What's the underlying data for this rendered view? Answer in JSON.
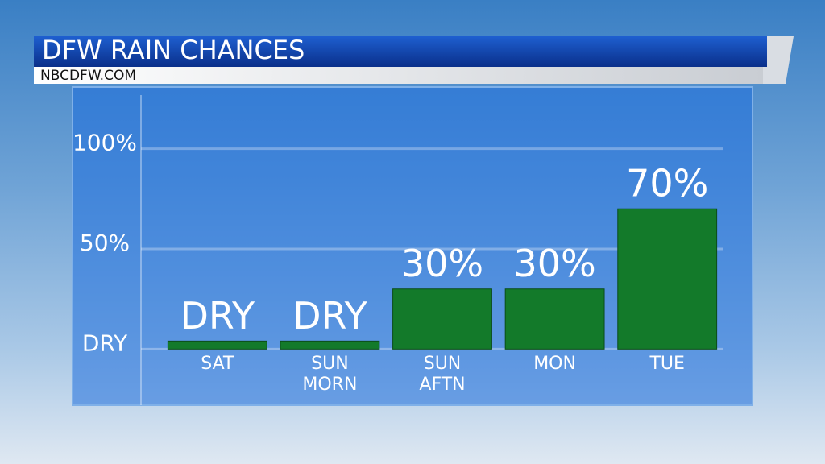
{
  "chart_data": {
    "type": "bar",
    "title": "DFW RAIN CHANCES",
    "subtitle": "NBCDFW.COM",
    "categories": [
      "SAT",
      "SUN MORN",
      "SUN AFTN",
      "MON",
      "TUE"
    ],
    "values": [
      0,
      0,
      30,
      30,
      70
    ],
    "value_labels": [
      "DRY",
      "DRY",
      "30%",
      "30%",
      "70%"
    ],
    "color": "#137a2a",
    "ylim": [
      -28,
      130
    ],
    "yticks": [
      {
        "value": 0,
        "label": "DRY"
      },
      {
        "value": 50,
        "label": "50%"
      },
      {
        "value": 100,
        "label": "100%"
      }
    ],
    "grid": true
  }
}
